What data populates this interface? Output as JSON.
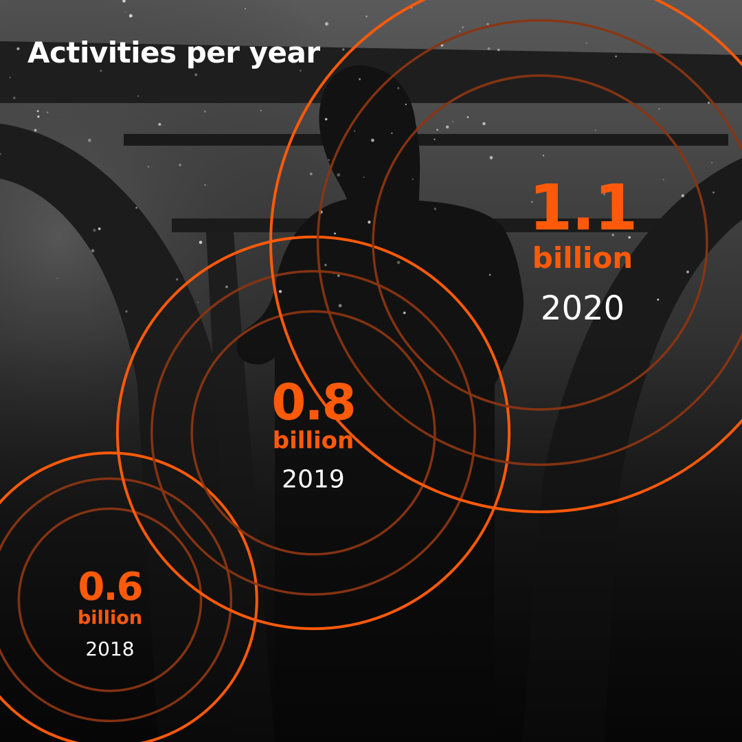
{
  "colors": {
    "accent": "#ff5a0a",
    "ring_inner": "#8a3512",
    "text": "#ffffff",
    "background": "#151515"
  },
  "chart_data": {
    "type": "bubble-rings",
    "title": "Activities per year",
    "unit": "billion",
    "points": [
      {
        "year": "2018",
        "value": 0.6,
        "label": "0.6"
      },
      {
        "year": "2019",
        "value": 0.8,
        "label": "0.8"
      },
      {
        "year": "2020",
        "value": 1.1,
        "label": "1.1"
      }
    ]
  }
}
